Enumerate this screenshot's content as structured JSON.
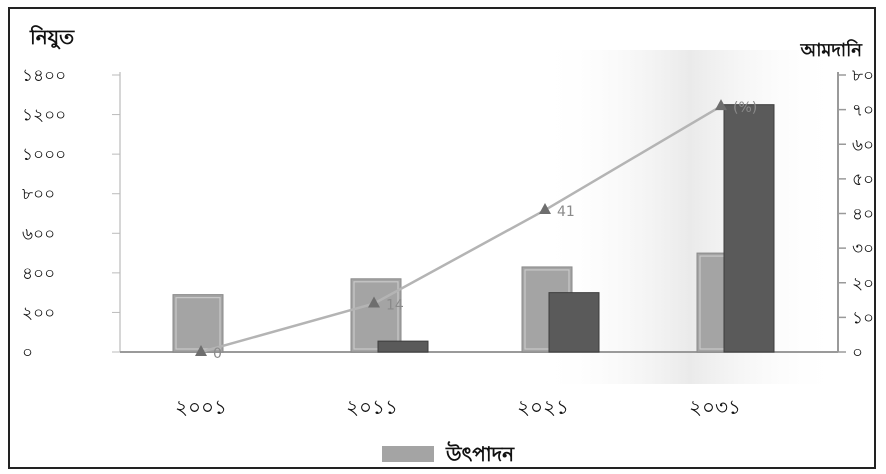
{
  "chart_data": {
    "type": "bar",
    "left_axis_title": "নিযুত",
    "right_axis_title": "আমদানি",
    "categories": [
      "২০০১",
      "২০১১",
      "২০২১",
      "২০৩১"
    ],
    "left_ticks": [
      "০",
      "২০০",
      "৪০০",
      "৬০০",
      "৮০০",
      "১০০০",
      "১২০০",
      "১৪০০"
    ],
    "right_ticks": [
      "০",
      "১০",
      "২০",
      "৩০",
      "৪০",
      "৫০",
      "৬০",
      "৭০",
      "৮০"
    ],
    "left_axis_range": [
      0,
      1400
    ],
    "right_axis_range": [
      0,
      80
    ],
    "series": [
      {
        "name": "উৎপাদন",
        "kind": "bar",
        "axis": "left",
        "color": "#a4a4a4",
        "values": [
          290,
          370,
          430,
          500
        ]
      },
      {
        "kind": "bar",
        "axis": "left",
        "color": "#5a5a5a",
        "values": [
          0,
          55,
          300,
          1250
        ]
      },
      {
        "kind": "line",
        "axis": "right",
        "color": "#b4b4b4",
        "marker_color": "#6e6e6e",
        "values": [
          0,
          14,
          41,
          71
        ],
        "point_labels": [
          "0",
          "14",
          "41",
          "(%)"
        ]
      }
    ],
    "legend_label": "উৎপাদন",
    "legend_position": "bottom-center",
    "grid": false
  }
}
